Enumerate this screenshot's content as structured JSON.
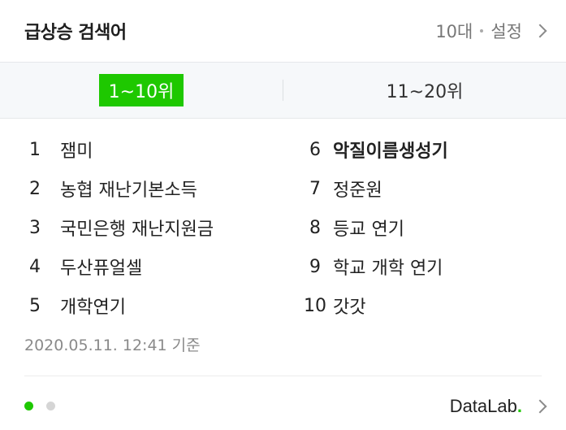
{
  "header": {
    "title": "급상승 검색어",
    "age_filter": "10대",
    "settings_label": "설정"
  },
  "tabs": [
    {
      "label": "1~10위",
      "active": true
    },
    {
      "label": "11~20위",
      "active": false
    }
  ],
  "ranking": {
    "left": [
      {
        "rank": "1",
        "keyword": "잼미"
      },
      {
        "rank": "2",
        "keyword": "농협 재난기본소득"
      },
      {
        "rank": "3",
        "keyword": "국민은행 재난지원금"
      },
      {
        "rank": "4",
        "keyword": "두산퓨얼셀"
      },
      {
        "rank": "5",
        "keyword": "개학연기"
      }
    ],
    "right": [
      {
        "rank": "6",
        "keyword": "악질이름생성기"
      },
      {
        "rank": "7",
        "keyword": "정준원"
      },
      {
        "rank": "8",
        "keyword": "등교 연기"
      },
      {
        "rank": "9",
        "keyword": "학교 개학 연기"
      },
      {
        "rank": "10",
        "keyword": "갓갓"
      }
    ]
  },
  "timestamp": "2020.05.11. 12:41 기준",
  "footer": {
    "brand": "DataLab",
    "brand_dot": ".",
    "pages": 2,
    "current_page": 1
  },
  "colors": {
    "accent": "#1ec800"
  }
}
